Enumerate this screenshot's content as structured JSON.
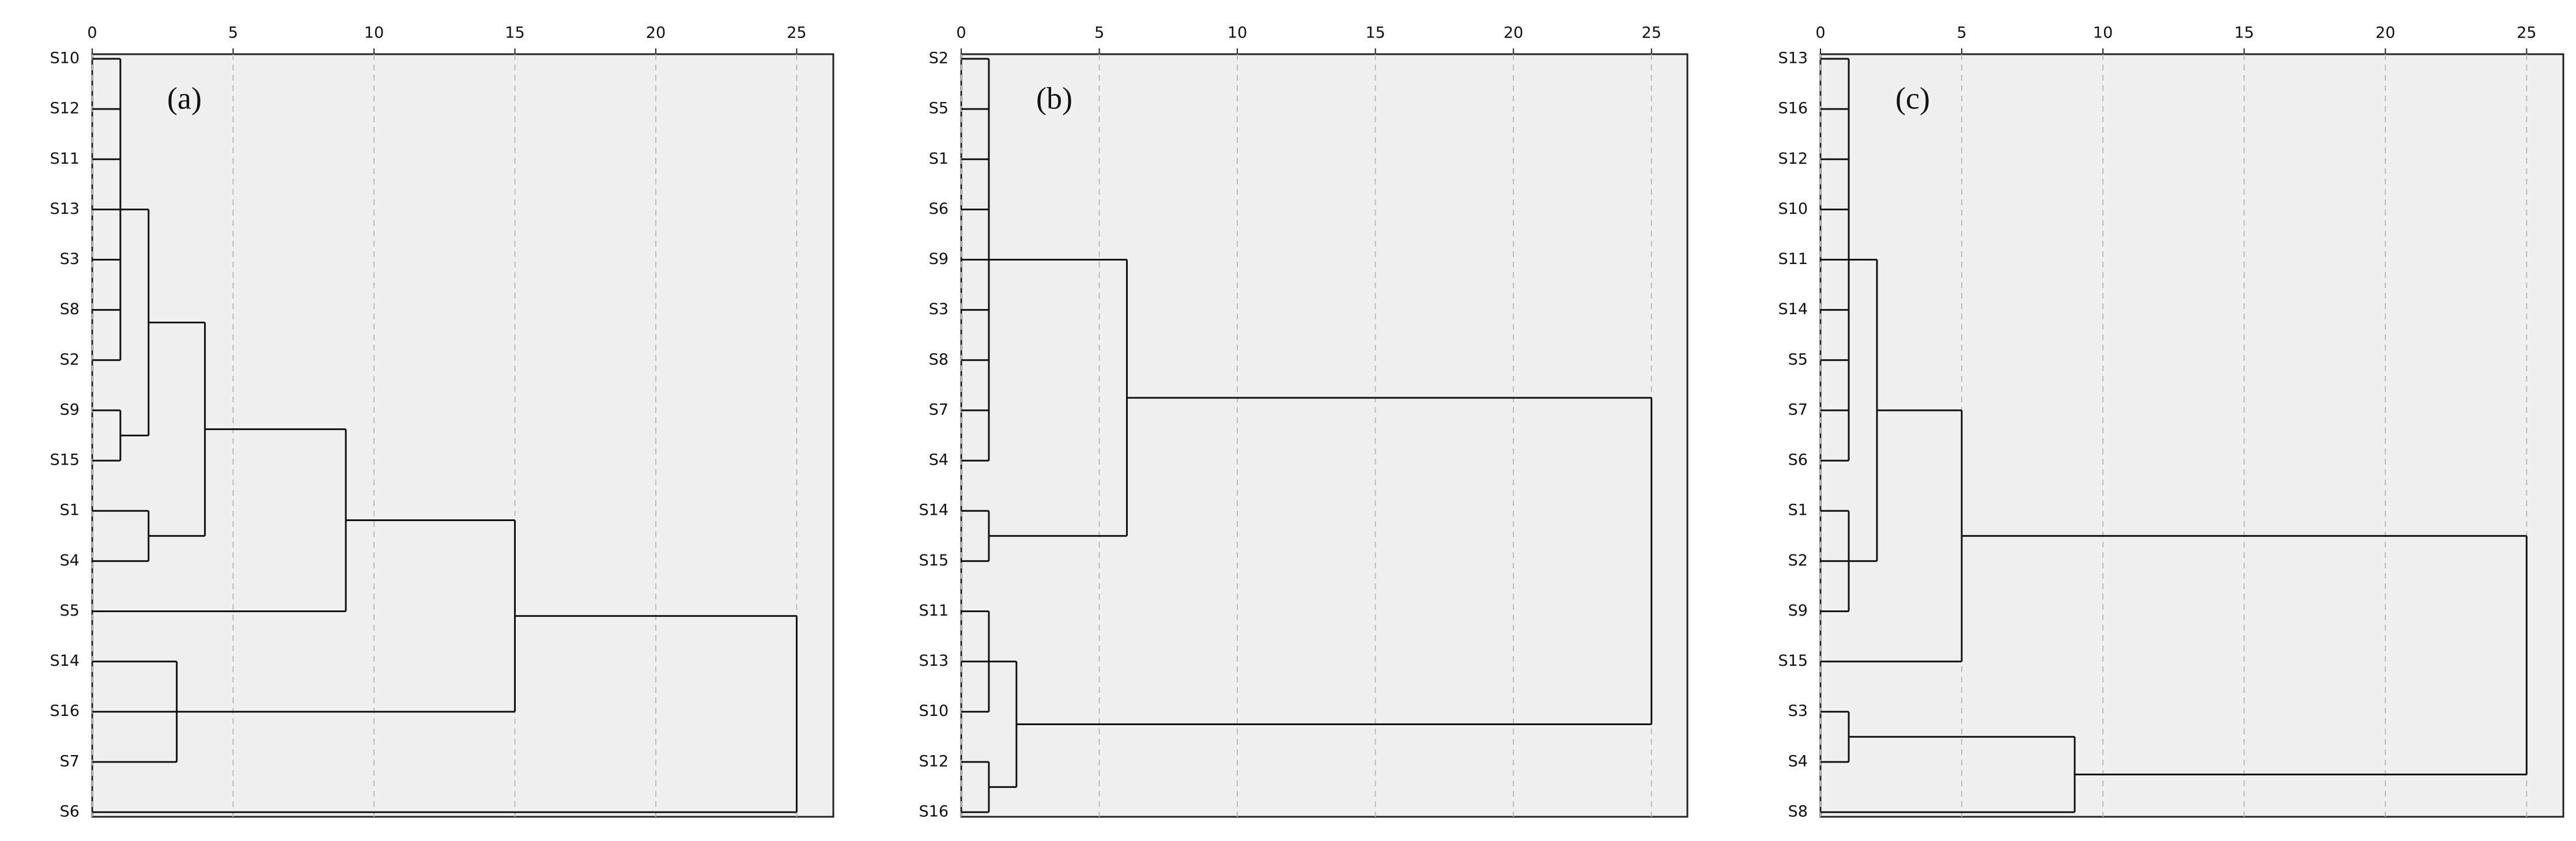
{
  "chart_data": [
    {
      "type": "dendrogram",
      "panel_label": "(a)",
      "leaves": [
        "S10",
        "S12",
        "S11",
        "S13",
        "S3",
        "S8",
        "S2",
        "S9",
        "S15",
        "S1",
        "S4",
        "S5",
        "S14",
        "S16",
        "S7",
        "S6"
      ],
      "xlim": [
        0,
        26.3
      ],
      "xticks": [
        0,
        5,
        10,
        15,
        20,
        25
      ],
      "grid": true,
      "tree": {
        "height": 25,
        "children": [
          {
            "height": 15,
            "children": [
              {
                "height": 9,
                "children": [
                  {
                    "height": 4,
                    "children": [
                      {
                        "height": 2,
                        "children": [
                          {
                            "height": 1,
                            "children": [
                              0,
                              1,
                              2,
                              3,
                              4,
                              5,
                              6
                            ]
                          },
                          {
                            "height": 1,
                            "children": [
                              7,
                              8
                            ]
                          }
                        ]
                      },
                      {
                        "height": 2,
                        "children": [
                          9,
                          10
                        ]
                      }
                    ]
                  },
                  11
                ]
              },
              {
                "height": 3,
                "children": [
                  12,
                  13,
                  14
                ]
              }
            ]
          },
          15
        ]
      }
    },
    {
      "type": "dendrogram",
      "panel_label": "(b)",
      "leaves": [
        "S2",
        "S5",
        "S1",
        "S6",
        "S9",
        "S3",
        "S8",
        "S7",
        "S4",
        "S14",
        "S15",
        "S11",
        "S13",
        "S10",
        "S12",
        "S16"
      ],
      "xlim": [
        0,
        26.3
      ],
      "xticks": [
        0,
        5,
        10,
        15,
        20,
        25
      ],
      "grid": true,
      "tree": {
        "height": 25,
        "children": [
          {
            "height": 6,
            "children": [
              {
                "height": 1,
                "children": [
                  0,
                  1,
                  2,
                  3,
                  4,
                  5,
                  6,
                  7,
                  8
                ]
              },
              {
                "height": 1,
                "children": [
                  9,
                  10
                ]
              }
            ]
          },
          {
            "height": 2,
            "children": [
              {
                "height": 1,
                "children": [
                  11,
                  12,
                  13
                ]
              },
              {
                "height": 1,
                "children": [
                  14,
                  15
                ]
              }
            ]
          }
        ]
      }
    },
    {
      "type": "dendrogram",
      "panel_label": "(c)",
      "leaves": [
        "S13",
        "S16",
        "S12",
        "S10",
        "S11",
        "S14",
        "S5",
        "S7",
        "S6",
        "S1",
        "S2",
        "S9",
        "S15",
        "S3",
        "S4",
        "S8"
      ],
      "xlim": [
        0,
        26.3
      ],
      "xticks": [
        0,
        5,
        10,
        15,
        20,
        25
      ],
      "grid": true,
      "tree": {
        "height": 25,
        "children": [
          {
            "height": 5,
            "children": [
              {
                "height": 2,
                "children": [
                  {
                    "height": 1,
                    "children": [
                      0,
                      1,
                      2,
                      3,
                      4,
                      5,
                      6,
                      7,
                      8
                    ]
                  },
                  {
                    "height": 1,
                    "children": [
                      9,
                      10,
                      11
                    ]
                  }
                ]
              },
              12
            ]
          },
          {
            "height": 9,
            "children": [
              {
                "height": 1,
                "children": [
                  13,
                  14
                ]
              },
              15
            ]
          }
        ]
      }
    }
  ]
}
